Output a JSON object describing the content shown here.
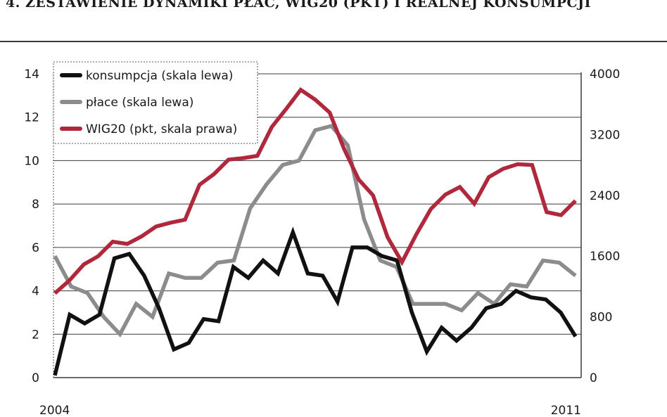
{
  "title": "4. ZESTAWIENIE DYNAMIKI PŁAC, WIG20 (PKT) I REALNEJ KONSUMPCJI",
  "chart_data": {
    "type": "line",
    "x_labels": [
      "2004",
      "2011"
    ],
    "y_left": {
      "min": 0,
      "max": 14,
      "ticks": [
        0,
        2,
        4,
        6,
        8,
        10,
        12,
        14
      ]
    },
    "y_right": {
      "min": 0,
      "max": 4000,
      "ticks": [
        0,
        800,
        1600,
        2400,
        3200,
        4000
      ]
    },
    "grid": true,
    "legend_position": "top-left",
    "series": [
      {
        "name": "konsumpcja (skala lewa)",
        "axis": "left",
        "color": "#111111",
        "values": [
          0.1,
          2.9,
          2.5,
          2.9,
          5.5,
          5.7,
          4.7,
          3.2,
          1.3,
          1.6,
          2.7,
          2.6,
          5.1,
          4.6,
          5.4,
          4.8,
          6.7,
          4.8,
          4.7,
          3.5,
          6.0,
          6.0,
          5.6,
          5.4,
          3.0,
          1.2,
          2.3,
          1.7,
          2.3,
          3.2,
          3.4,
          4.0,
          3.7,
          3.6,
          3.0,
          1.9
        ]
      },
      {
        "name": "płace (skala lewa)",
        "axis": "left",
        "color": "#8c8c8c",
        "values": [
          5.6,
          4.2,
          3.9,
          2.8,
          2.0,
          3.4,
          2.8,
          4.8,
          4.6,
          4.6,
          5.3,
          5.4,
          7.8,
          8.9,
          9.8,
          10.0,
          11.4,
          11.6,
          10.7,
          7.3,
          5.4,
          5.1,
          3.4,
          3.4,
          3.4,
          3.1,
          3.9,
          3.4,
          4.3,
          4.2,
          5.4,
          5.3,
          4.7
        ]
      },
      {
        "name": "WIG20 (pkt, skala prawa)",
        "axis": "right",
        "color": "#b0283c",
        "values": [
          1110,
          1280,
          1490,
          1600,
          1790,
          1760,
          1860,
          1990,
          2040,
          2080,
          2540,
          2680,
          2870,
          2890,
          2920,
          3300,
          3540,
          3790,
          3660,
          3490,
          3010,
          2610,
          2400,
          1850,
          1520,
          1890,
          2220,
          2410,
          2510,
          2290,
          2640,
          2750,
          2810,
          2800,
          2180,
          2140,
          2330
        ]
      }
    ]
  }
}
